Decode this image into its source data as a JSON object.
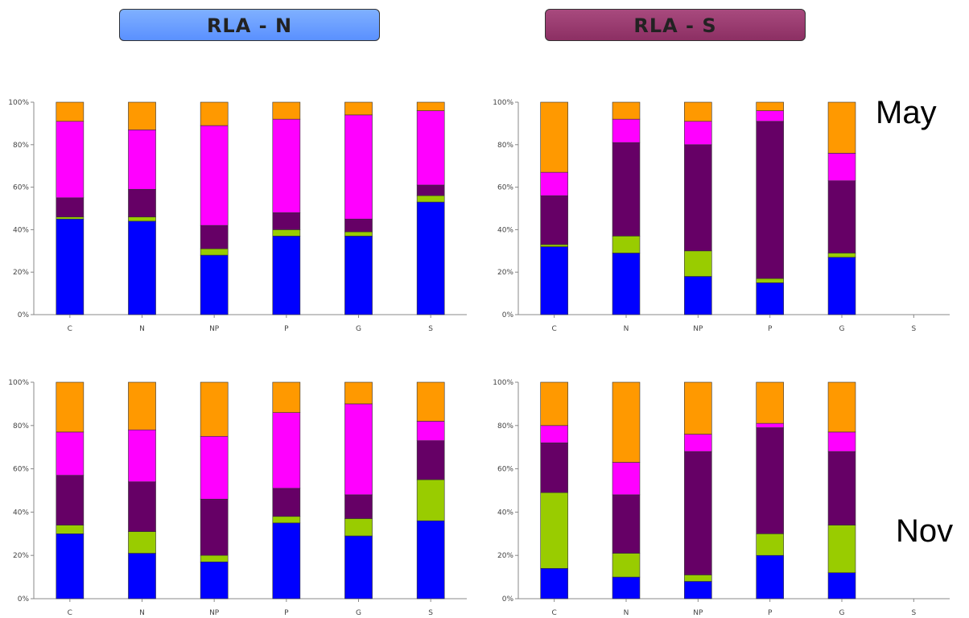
{
  "headers": {
    "left": "RLA - N",
    "right": "RLA - S"
  },
  "periods": {
    "top": "May",
    "bottom": "Nov"
  },
  "colors": {
    "blue": "#0000ff",
    "green": "#99cc00",
    "purple": "#660066",
    "magenta": "#ff00ff",
    "orange": "#ff9900"
  },
  "chart_data": [
    {
      "type": "bar",
      "stacked": true,
      "group": "RLA - N",
      "period": "May",
      "categories": [
        "C",
        "N",
        "NP",
        "P",
        "G",
        "S"
      ],
      "yticks": [
        "0%",
        "20%",
        "40%",
        "60%",
        "80%",
        "100%"
      ],
      "ylim": [
        0,
        100
      ],
      "series": [
        {
          "color": "blue",
          "values": [
            45,
            44,
            28,
            37,
            37,
            53
          ]
        },
        {
          "color": "green",
          "values": [
            1,
            2,
            3,
            3,
            2,
            3
          ]
        },
        {
          "color": "purple",
          "values": [
            9,
            13,
            11,
            8,
            6,
            5
          ]
        },
        {
          "color": "magenta",
          "values": [
            36,
            28,
            47,
            44,
            49,
            35
          ]
        },
        {
          "color": "orange",
          "values": [
            9,
            13,
            11,
            8,
            6,
            4
          ]
        }
      ]
    },
    {
      "type": "bar",
      "stacked": true,
      "group": "RLA - S",
      "period": "May",
      "categories": [
        "C",
        "N",
        "NP",
        "P",
        "G",
        "S"
      ],
      "yticks": [
        "0%",
        "20%",
        "40%",
        "60%",
        "80%",
        "100%"
      ],
      "ylim": [
        0,
        100
      ],
      "series": [
        {
          "color": "blue",
          "values": [
            32,
            29,
            18,
            15,
            27,
            0
          ]
        },
        {
          "color": "green",
          "values": [
            1,
            8,
            12,
            2,
            2,
            0
          ]
        },
        {
          "color": "purple",
          "values": [
            23,
            44,
            50,
            74,
            34,
            0
          ]
        },
        {
          "color": "magenta",
          "values": [
            11,
            11,
            11,
            5,
            13,
            0
          ]
        },
        {
          "color": "orange",
          "values": [
            33,
            8,
            9,
            4,
            24,
            0
          ]
        }
      ]
    },
    {
      "type": "bar",
      "stacked": true,
      "group": "RLA - N",
      "period": "Nov",
      "categories": [
        "C",
        "N",
        "NP",
        "P",
        "G",
        "S"
      ],
      "yticks": [
        "0%",
        "20%",
        "40%",
        "60%",
        "80%",
        "100%"
      ],
      "ylim": [
        0,
        100
      ],
      "series": [
        {
          "color": "blue",
          "values": [
            30,
            21,
            17,
            35,
            29,
            36
          ]
        },
        {
          "color": "green",
          "values": [
            4,
            10,
            3,
            3,
            8,
            19
          ]
        },
        {
          "color": "purple",
          "values": [
            23,
            23,
            26,
            13,
            11,
            18
          ]
        },
        {
          "color": "magenta",
          "values": [
            20,
            24,
            29,
            35,
            42,
            9
          ]
        },
        {
          "color": "orange",
          "values": [
            23,
            22,
            25,
            14,
            10,
            18
          ]
        }
      ]
    },
    {
      "type": "bar",
      "stacked": true,
      "group": "RLA - S",
      "period": "Nov",
      "categories": [
        "C",
        "N",
        "NP",
        "P",
        "G",
        "S"
      ],
      "yticks": [
        "0%",
        "20%",
        "40%",
        "60%",
        "80%",
        "100%"
      ],
      "ylim": [
        0,
        100
      ],
      "series": [
        {
          "color": "blue",
          "values": [
            14,
            10,
            8,
            20,
            12,
            0
          ]
        },
        {
          "color": "green",
          "values": [
            35,
            11,
            3,
            10,
            22,
            0
          ]
        },
        {
          "color": "purple",
          "values": [
            23,
            27,
            57,
            49,
            34,
            0
          ]
        },
        {
          "color": "magenta",
          "values": [
            8,
            15,
            8,
            2,
            9,
            0
          ]
        },
        {
          "color": "orange",
          "values": [
            20,
            37,
            24,
            19,
            23,
            0
          ]
        }
      ]
    }
  ]
}
